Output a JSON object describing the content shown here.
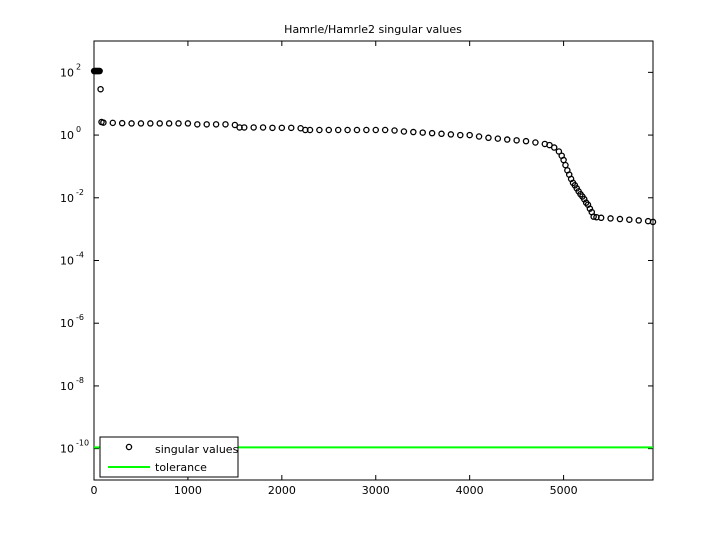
{
  "chart_data": {
    "type": "scatter",
    "title": "Hamrle/Hamrle2 singular values",
    "series": [
      {
        "name": "singular values",
        "color": "#000000",
        "marker": "circle",
        "x": [
          1,
          10,
          20,
          30,
          40,
          50,
          60,
          70,
          80,
          100,
          200,
          300,
          400,
          500,
          600,
          700,
          800,
          900,
          1000,
          1100,
          1200,
          1300,
          1400,
          1500,
          1550,
          1600,
          1700,
          1800,
          1900,
          2000,
          2100,
          2200,
          2250,
          2300,
          2400,
          2500,
          2600,
          2700,
          2800,
          2900,
          3000,
          3100,
          3200,
          3300,
          3400,
          3500,
          3600,
          3700,
          3800,
          3900,
          4000,
          4100,
          4200,
          4300,
          4400,
          4500,
          4600,
          4700,
          4800,
          4850,
          4900,
          4950,
          4980,
          5000,
          5020,
          5040,
          5060,
          5080,
          5100,
          5120,
          5140,
          5160,
          5180,
          5200,
          5220,
          5240,
          5260,
          5280,
          5300,
          5320,
          5350,
          5400,
          5500,
          5600,
          5700,
          5800,
          5900,
          5952
        ],
        "values": [
          110,
          110,
          110,
          110,
          110,
          110,
          110,
          29,
          2.6,
          2.5,
          2.45,
          2.4,
          2.35,
          2.35,
          2.35,
          2.35,
          2.35,
          2.35,
          2.35,
          2.2,
          2.2,
          2.2,
          2.2,
          2.1,
          1.75,
          1.75,
          1.75,
          1.75,
          1.7,
          1.7,
          1.7,
          1.65,
          1.45,
          1.45,
          1.45,
          1.45,
          1.45,
          1.45,
          1.45,
          1.45,
          1.45,
          1.45,
          1.4,
          1.3,
          1.25,
          1.2,
          1.15,
          1.1,
          1.05,
          1.0,
          1.0,
          0.9,
          0.82,
          0.77,
          0.72,
          0.68,
          0.64,
          0.58,
          0.52,
          0.48,
          0.4,
          0.3,
          0.22,
          0.16,
          0.11,
          0.075,
          0.055,
          0.04,
          0.03,
          0.025,
          0.02,
          0.016,
          0.013,
          0.011,
          0.009,
          0.007,
          0.006,
          0.0045,
          0.0035,
          0.0025,
          0.0024,
          0.0023,
          0.0022,
          0.0021,
          0.002,
          0.0019,
          0.0018,
          0.0017
        ]
      },
      {
        "name": "tolerance",
        "color": "#00ff00",
        "marker": "line",
        "x": [
          0,
          5952
        ],
        "values": [
          1.1e-10,
          1.1e-10
        ]
      }
    ],
    "xlim": [
      0,
      5952
    ],
    "ylim": [
      1e-11,
      1000
    ],
    "yscale": "log",
    "xticks": [
      0,
      1000,
      2000,
      3000,
      4000,
      5000
    ],
    "yticks": [
      {
        "value": 100,
        "label": "10^2"
      },
      {
        "value": 1,
        "label": "10^0"
      },
      {
        "value": 0.01,
        "label": "10^-2"
      },
      {
        "value": 0.0001,
        "label": "10^-4"
      },
      {
        "value": 1e-06,
        "label": "10^-6"
      },
      {
        "value": 1e-08,
        "label": "10^-8"
      },
      {
        "value": 1e-10,
        "label": "10^-10"
      }
    ],
    "grid": false,
    "legend": "lower left"
  }
}
